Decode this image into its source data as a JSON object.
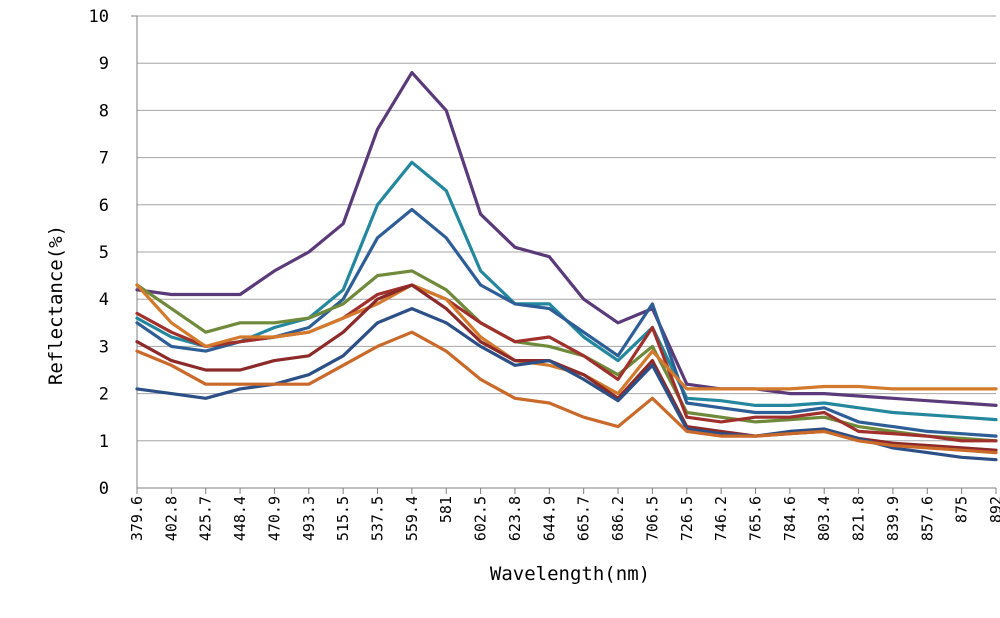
{
  "chart_data": {
    "type": "line",
    "title": "",
    "xlabel": "Wavelength(nm)",
    "ylabel": "Reflectance(%)",
    "ylim": [
      0,
      10
    ],
    "yticks": [
      0,
      1,
      2,
      3,
      4,
      5,
      6,
      7,
      8,
      9,
      10
    ],
    "grid": "horizontal",
    "categories": [
      "379.6",
      "402.8",
      "425.7",
      "448.4",
      "470.9",
      "493.3",
      "515.5",
      "537.5",
      "559.4",
      "581",
      "602.5",
      "623.8",
      "644.9",
      "665.7",
      "686.2",
      "706.5",
      "726.5",
      "746.2",
      "765.6",
      "784.6",
      "803.4",
      "821.8",
      "839.9",
      "857.6",
      "875",
      "892"
    ],
    "series": [
      {
        "name": "purple",
        "color": "#5b3a7a",
        "values": [
          4.2,
          4.1,
          4.1,
          4.1,
          4.6,
          5.0,
          5.6,
          7.6,
          8.8,
          8.0,
          5.8,
          5.1,
          4.9,
          4.0,
          3.5,
          3.8,
          2.2,
          2.1,
          2.1,
          2.0,
          2.0,
          1.95,
          1.9,
          1.85,
          1.8,
          1.75
        ]
      },
      {
        "name": "teal",
        "color": "#23879e",
        "values": [
          3.6,
          3.2,
          3.0,
          3.1,
          3.4,
          3.6,
          4.2,
          6.0,
          6.9,
          6.3,
          4.6,
          3.9,
          3.9,
          3.2,
          2.7,
          3.4,
          1.9,
          1.85,
          1.75,
          1.75,
          1.8,
          1.7,
          1.6,
          1.55,
          1.5,
          1.45
        ]
      },
      {
        "name": "blue",
        "color": "#2d5e96",
        "values": [
          3.5,
          3.0,
          2.9,
          3.1,
          3.2,
          3.4,
          4.0,
          5.3,
          5.9,
          5.3,
          4.3,
          3.9,
          3.8,
          3.3,
          2.8,
          3.9,
          1.8,
          1.7,
          1.6,
          1.6,
          1.7,
          1.4,
          1.3,
          1.2,
          1.15,
          1.1
        ]
      },
      {
        "name": "green",
        "color": "#6f8a3a",
        "values": [
          4.3,
          3.8,
          3.3,
          3.5,
          3.5,
          3.6,
          3.9,
          4.5,
          4.6,
          4.2,
          3.5,
          3.1,
          3.0,
          2.8,
          2.4,
          3.0,
          1.6,
          1.5,
          1.4,
          1.45,
          1.5,
          1.3,
          1.2,
          1.1,
          1.05,
          1.0
        ]
      },
      {
        "name": "red",
        "color": "#a0302c",
        "values": [
          3.7,
          3.3,
          3.0,
          3.1,
          3.2,
          3.3,
          3.6,
          4.1,
          4.3,
          4.0,
          3.5,
          3.1,
          3.2,
          2.8,
          2.3,
          3.4,
          1.5,
          1.4,
          1.5,
          1.5,
          1.6,
          1.2,
          1.15,
          1.1,
          1.0,
          1.0
        ]
      },
      {
        "name": "orange",
        "color": "#d37a2c",
        "values": [
          4.3,
          3.5,
          3.0,
          3.2,
          3.2,
          3.3,
          3.6,
          3.9,
          4.3,
          4.0,
          3.2,
          2.7,
          2.6,
          2.4,
          2.0,
          2.9,
          2.1,
          2.1,
          2.1,
          2.1,
          2.15,
          2.15,
          2.1,
          2.1,
          2.1,
          2.1
        ]
      },
      {
        "name": "crimson",
        "color": "#8c2a2a",
        "values": [
          3.1,
          2.7,
          2.5,
          2.5,
          2.7,
          2.8,
          3.3,
          4.0,
          4.3,
          3.8,
          3.1,
          2.7,
          2.7,
          2.4,
          1.9,
          2.7,
          1.3,
          1.2,
          1.1,
          1.15,
          1.2,
          1.05,
          0.95,
          0.9,
          0.85,
          0.8
        ]
      },
      {
        "name": "navy",
        "color": "#2c4f86",
        "values": [
          2.1,
          2.0,
          1.9,
          2.1,
          2.2,
          2.4,
          2.8,
          3.5,
          3.8,
          3.5,
          3.0,
          2.6,
          2.7,
          2.3,
          1.85,
          2.6,
          1.25,
          1.15,
          1.1,
          1.2,
          1.25,
          1.05,
          0.85,
          0.75,
          0.65,
          0.6
        ]
      },
      {
        "name": "light-orange",
        "color": "#c9692a",
        "values": [
          2.9,
          2.6,
          2.2,
          2.2,
          2.2,
          2.2,
          2.6,
          3.0,
          3.3,
          2.9,
          2.3,
          1.9,
          1.8,
          1.5,
          1.3,
          1.9,
          1.2,
          1.1,
          1.1,
          1.15,
          1.2,
          1.0,
          0.9,
          0.85,
          0.8,
          0.75
        ]
      }
    ]
  }
}
